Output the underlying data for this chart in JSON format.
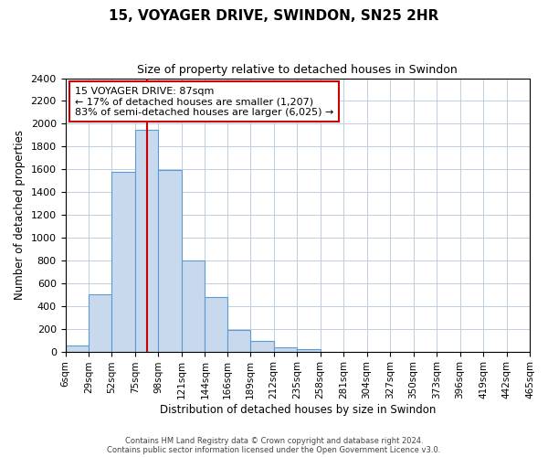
{
  "title": "15, VOYAGER DRIVE, SWINDON, SN25 2HR",
  "subtitle": "Size of property relative to detached houses in Swindon",
  "xlabel": "Distribution of detached houses by size in Swindon",
  "ylabel": "Number of detached properties",
  "bin_edges": [
    6,
    29,
    52,
    75,
    98,
    121,
    144,
    166,
    189,
    212,
    235,
    258,
    281,
    304,
    327,
    350,
    373,
    396,
    419,
    442,
    465
  ],
  "bin_labels": [
    "6sqm",
    "29sqm",
    "52sqm",
    "75sqm",
    "98sqm",
    "121sqm",
    "144sqm",
    "166sqm",
    "189sqm",
    "212sqm",
    "235sqm",
    "258sqm",
    "281sqm",
    "304sqm",
    "327sqm",
    "350sqm",
    "373sqm",
    "396sqm",
    "419sqm",
    "442sqm",
    "465sqm"
  ],
  "bar_heights": [
    50,
    500,
    1580,
    1950,
    1590,
    800,
    480,
    190,
    90,
    35,
    20,
    0,
    0,
    0,
    0,
    0,
    0,
    0,
    0,
    0
  ],
  "bar_color": "#c9d9ed",
  "bar_edge_color": "#5b9bd5",
  "red_line_x": 87,
  "red_line_color": "#cc0000",
  "ylim": [
    0,
    2400
  ],
  "yticks": [
    0,
    200,
    400,
    600,
    800,
    1000,
    1200,
    1400,
    1600,
    1800,
    2000,
    2200,
    2400
  ],
  "annotation_title": "15 VOYAGER DRIVE: 87sqm",
  "annotation_line1": "← 17% of detached houses are smaller (1,207)",
  "annotation_line2": "83% of semi-detached houses are larger (6,025) →",
  "annotation_box_color": "#ffffff",
  "annotation_box_edge_color": "#cc0000",
  "footer1": "Contains HM Land Registry data © Crown copyright and database right 2024.",
  "footer2": "Contains public sector information licensed under the Open Government Licence v3.0.",
  "bg_color": "#ffffff",
  "grid_color": "#c0cfe0"
}
